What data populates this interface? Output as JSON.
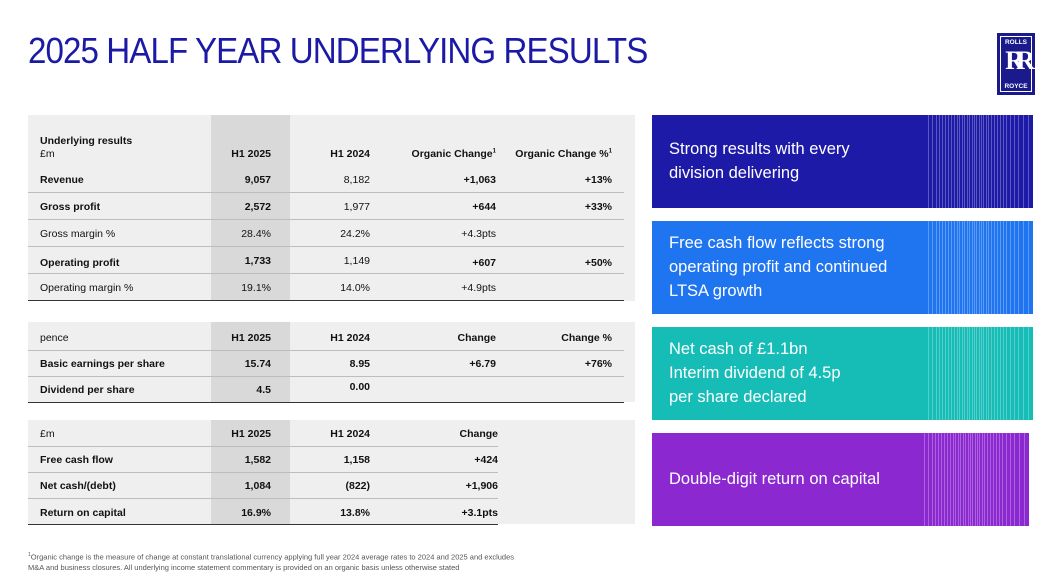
{
  "title": "2025 HALF YEAR UNDERLYING RESULTS",
  "logo": {
    "top": "ROLLS",
    "mark": "RR",
    "bottom": "ROYCE"
  },
  "table1": {
    "header": {
      "label1": "Underlying results",
      "label2": "£m",
      "h1": "H1 2025",
      "h2": "H1 2024",
      "h3": "Organic Change",
      "h3sup": "1",
      "h4": "Organic Change %",
      "h4sup": "1"
    },
    "rows": [
      {
        "label": "Revenue",
        "v1": "9,057",
        "v2": "8,182",
        "v3": "+1,063",
        "v4": "+13%"
      },
      {
        "label": "Gross profit",
        "v1": "2,572",
        "v2": "1,977",
        "v3": "+644",
        "v4": "+33%"
      },
      {
        "label": "Gross margin %",
        "v1": "28.4%",
        "v2": "24.2%",
        "v3": "+4.3pts",
        "v4": ""
      },
      {
        "label": "Operating profit",
        "v1": "1,733",
        "v2": "1,149",
        "v3": "+607",
        "v4": "+50%"
      },
      {
        "label": "Operating margin %",
        "v1": "19.1%",
        "v2": "14.0%",
        "v3": "+4.9pts",
        "v4": ""
      }
    ]
  },
  "table2": {
    "header": {
      "label": "pence",
      "h1": "H1 2025",
      "h2": "H1 2024",
      "h3": "Change",
      "h4": "Change %"
    },
    "rows": [
      {
        "label": "Basic earnings per share",
        "v1": "15.74",
        "v2": "8.95",
        "v3": "+6.79",
        "v4": "+76%"
      },
      {
        "label": "Dividend per share",
        "v1": "4.5",
        "v2": "0.00",
        "v3": "",
        "v4": ""
      }
    ]
  },
  "table3": {
    "header": {
      "label": "£m",
      "h1": "H1 2025",
      "h2": "H1 2024",
      "h3": "Change"
    },
    "rows": [
      {
        "label": "Free cash flow",
        "v1": "1,582",
        "v2": "1,158",
        "v3": "+424"
      },
      {
        "label": "Net cash/(debt)",
        "v1": "1,084",
        "v2": "(822)",
        "v3": "+1,906"
      },
      {
        "label": "Return on capital",
        "v1": "16.9%",
        "v2": "13.8%",
        "v3": "+3.1pts"
      }
    ]
  },
  "highlights": [
    {
      "line1": "Strong results with every",
      "line2": "division  delivering",
      "line3": "",
      "color": "#1d1aa8"
    },
    {
      "line1": "Free cash flow reflects strong",
      "line2": "operating profit and continued",
      "line3": "LTSA growth",
      "color": "#1f74f0"
    },
    {
      "line1": "Net cash of £1.1bn",
      "line2": "Interim dividend of 4.5p",
      "line3": "per share declared",
      "color": "#16bdb6"
    },
    {
      "line1": "Double-digit return on capital",
      "line2": "",
      "line3": "",
      "color": "#8b28d0"
    }
  ],
  "footnote": {
    "sup": "1",
    "line1": "Organic change is the measure of change at constant translational currency applying full year 2024 average rates to 2024 and 2025 and excludes",
    "line2": "M&A and business closures. All underlying income statement commentary is provided on an organic basis unless otherwise stated"
  }
}
